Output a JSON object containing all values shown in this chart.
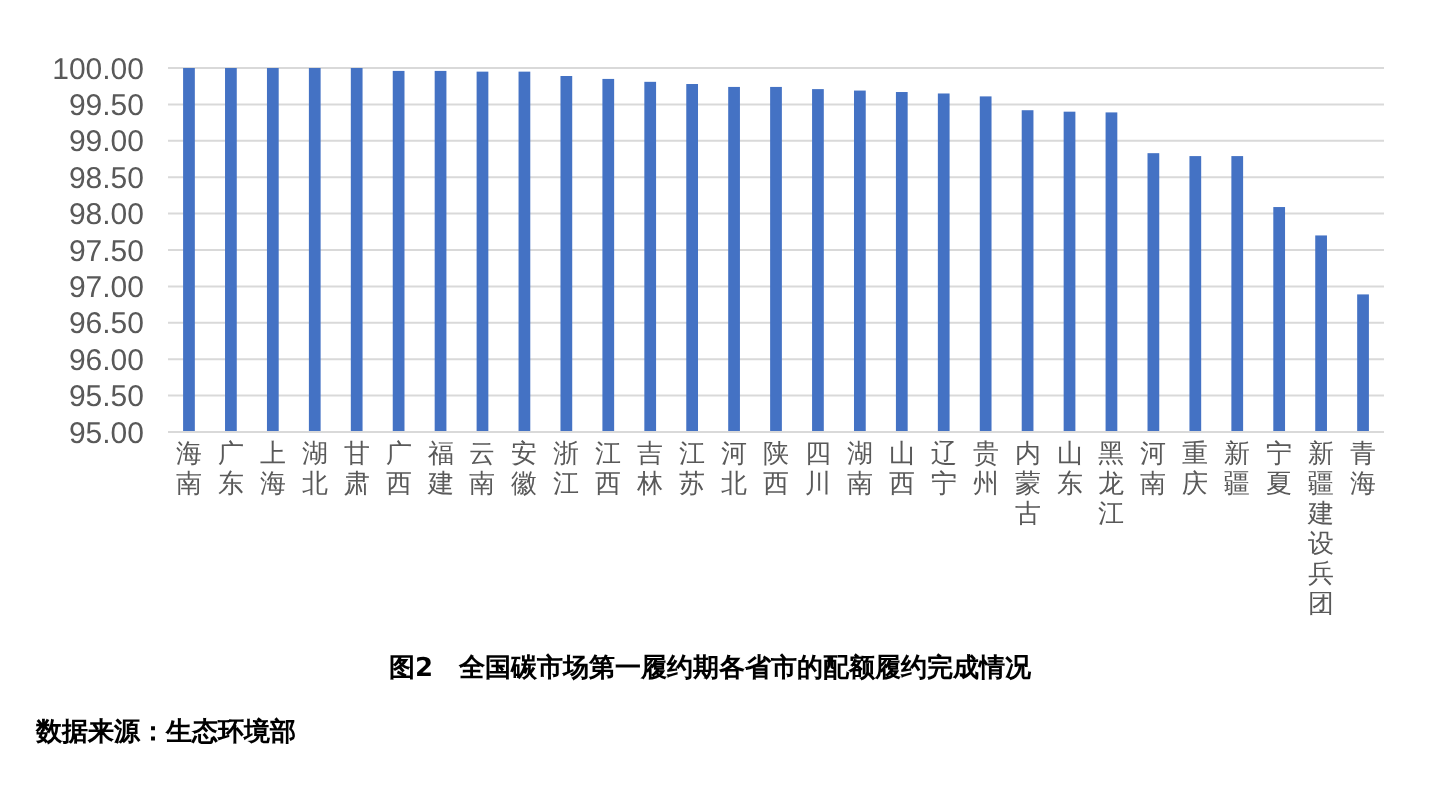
{
  "chart_data": {
    "type": "bar",
    "title": "图2　全国碳市场第一履约期各省市的配额履约完成情况",
    "categories": [
      "海南",
      "广东",
      "上海",
      "湖北",
      "甘肃",
      "广西",
      "福建",
      "云南",
      "安徽",
      "浙江",
      "江西",
      "吉林",
      "江苏",
      "河北",
      "陕西",
      "四川",
      "湖南",
      "山西",
      "辽宁",
      "贵州",
      "内蒙古",
      "山东",
      "黑龙江",
      "河南",
      "重庆",
      "新疆",
      "宁夏",
      "新疆建设兵团",
      "青海"
    ],
    "values": [
      100,
      100,
      100,
      100,
      100,
      99.96,
      99.96,
      99.95,
      99.95,
      99.89,
      99.85,
      99.81,
      99.78,
      99.74,
      99.74,
      99.71,
      99.69,
      99.67,
      99.65,
      99.61,
      99.42,
      99.4,
      99.39,
      98.83,
      98.79,
      98.79,
      98.09,
      97.7,
      96.89
    ],
    "color": "#4472c4",
    "ylim": [
      95,
      100
    ],
    "yticks": [
      {
        "value": 95,
        "label": "95.00"
      },
      {
        "value": 95.5,
        "label": "95.50"
      },
      {
        "value": 96,
        "label": "96.00"
      },
      {
        "value": 96.5,
        "label": "96.50"
      },
      {
        "value": 97,
        "label": "97.00"
      },
      {
        "value": 97.5,
        "label": "97.50"
      },
      {
        "value": 98,
        "label": "98.00"
      },
      {
        "value": 98.5,
        "label": "98.50"
      },
      {
        "value": 99,
        "label": "99.00"
      },
      {
        "value": 99.5,
        "label": "99.50"
      },
      {
        "value": 100,
        "label": "100.00"
      }
    ],
    "grid": "y",
    "annotations": [
      "数据来源：生态环境部"
    ]
  }
}
